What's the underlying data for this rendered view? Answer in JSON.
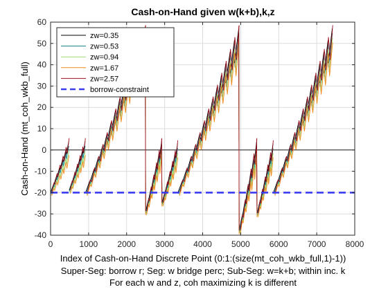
{
  "chart_data": {
    "type": "line",
    "title": "Cash-on-Hand given w(k+b),k,z",
    "xlabel": "Index of Cash-on-Hand Discrete Point (0:1:(size(mt_coh_wkb_full,1)-1))",
    "xlabel_line2": "Super-Seg: borrow r; Seg: w bridge perc; Sub-Seg: w=k+b; within inc. k",
    "xlabel_line3": "For each w and z, coh maximizing k is different",
    "ylabel": "Cash-on-Hand (mt_coh_wkb_full)",
    "xlim": [
      0,
      8000
    ],
    "ylim": [
      -40,
      60
    ],
    "xticks": [
      0,
      1000,
      2000,
      3000,
      4000,
      5000,
      6000,
      7000,
      8000
    ],
    "yticks": [
      -40,
      -30,
      -20,
      -10,
      0,
      10,
      20,
      30,
      40,
      50,
      60
    ],
    "grid": true,
    "legend_position": "top-left",
    "zero_line": 0,
    "segments": [
      {
        "x_start": 0,
        "x_end": 480,
        "y_start": -20,
        "y_end": 4,
        "teeth": 6
      },
      {
        "x_start": 490,
        "x_end": 910,
        "y_start": -19,
        "y_end": 4,
        "teeth": 6
      },
      {
        "x_start": 920,
        "x_end": 2490,
        "y_start": -20,
        "y_end": 57,
        "teeth": 14
      },
      {
        "x_start": 2500,
        "x_end": 2920,
        "y_start": -29,
        "y_end": 4,
        "teeth": 6
      },
      {
        "x_start": 2930,
        "x_end": 3340,
        "y_start": -25,
        "y_end": 3,
        "teeth": 6
      },
      {
        "x_start": 3350,
        "x_end": 4950,
        "y_start": -20,
        "y_end": 57,
        "teeth": 14
      },
      {
        "x_start": 4960,
        "x_end": 5420,
        "y_start": -38,
        "y_end": 4,
        "teeth": 6
      },
      {
        "x_start": 5430,
        "x_end": 5850,
        "y_start": -30,
        "y_end": 3,
        "teeth": 6
      },
      {
        "x_start": 5860,
        "x_end": 7410,
        "y_start": -20,
        "y_end": 57,
        "teeth": 14
      }
    ],
    "series": [
      {
        "name": "zw=0.35",
        "color": "#000000",
        "offset": 0.0
      },
      {
        "name": "zw=0.53",
        "color": "#0f7f86",
        "offset": -1.6
      },
      {
        "name": "zw=0.94",
        "color": "#9cdc72",
        "offset": -3.4
      },
      {
        "name": "zw=1.67",
        "color": "#f08a1c",
        "offset": -5.0
      },
      {
        "name": "zw=2.57",
        "color": "#9b0f1e",
        "offset": 1.2
      }
    ],
    "borrow_constraint": {
      "name": "borrow-constraint",
      "y": -20,
      "color": "#3b3bf0",
      "style": "dashed"
    }
  }
}
